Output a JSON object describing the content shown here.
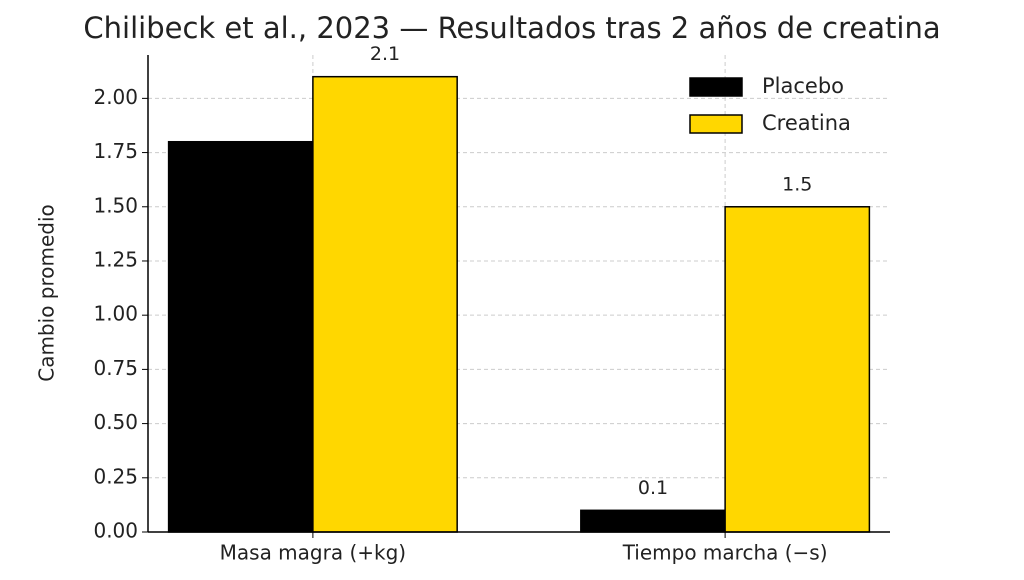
{
  "chart_data": {
    "type": "bar",
    "title": "Chilibeck et al., 2023 — Resultados tras 2 años de creatina",
    "y_label": "Cambio promedio",
    "categories": [
      "Masa magra (+kg)",
      "Tiempo marcha (−s)"
    ],
    "series": [
      {
        "name": "Placebo",
        "color": "#000000",
        "values": [
          1.8,
          0.1
        ],
        "value_labels": [
          null,
          "0.1"
        ]
      },
      {
        "name": "Creatina",
        "color": "#ffd700",
        "values": [
          2.1,
          1.5
        ],
        "value_labels": [
          "2.1",
          "1.5"
        ]
      }
    ],
    "ylim": [
      0,
      2.2
    ],
    "yticks": [
      {
        "value": 0,
        "label": "0.00"
      },
      {
        "value": 0.25,
        "label": "0.25"
      },
      {
        "value": 0.5,
        "label": "0.50"
      },
      {
        "value": 0.75,
        "label": "0.75"
      },
      {
        "value": 1,
        "label": "1.00"
      },
      {
        "value": 1.25,
        "label": "1.25"
      },
      {
        "value": 1.5,
        "label": "1.50"
      },
      {
        "value": 1.75,
        "label": "1.75"
      },
      {
        "value": 2,
        "label": "2.00"
      }
    ],
    "grid": true,
    "legend": "upper right"
  }
}
